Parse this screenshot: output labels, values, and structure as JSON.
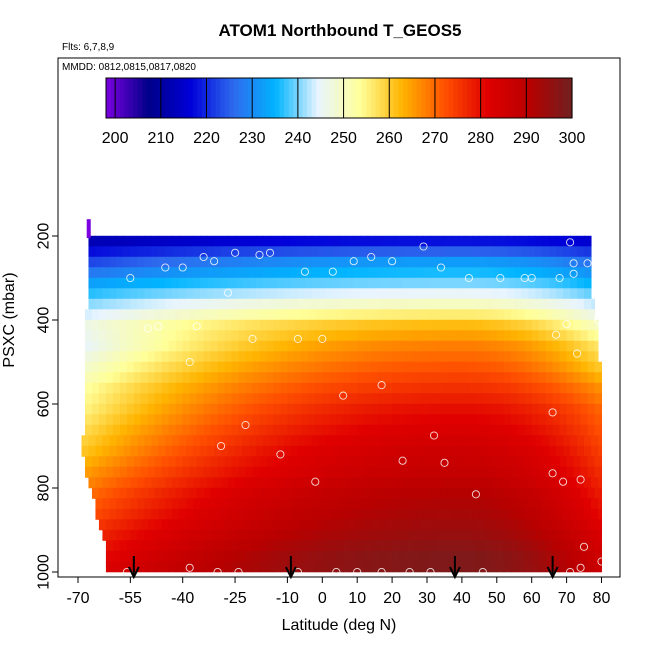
{
  "chart_data": {
    "type": "heatmap",
    "title": "ATOM1 Northbound T_GEOS5",
    "annotations": [
      "Flts: 6,7,8,9",
      "MMDD: 0812,0815,0817,0820"
    ],
    "xlabel": "Latitude (deg N)",
    "ylabel": "PSXC (mbar)",
    "xlim": [
      -70,
      80
    ],
    "ylim": [
      1000,
      0
    ],
    "x_ticks": [
      -70,
      -55,
      -40,
      -25,
      -10,
      0,
      10,
      20,
      30,
      40,
      50,
      60,
      70,
      80
    ],
    "y_ticks": [
      200,
      400,
      600,
      800,
      1000
    ],
    "colorbar": {
      "ticks": [
        200,
        210,
        220,
        230,
        240,
        250,
        260,
        270,
        280,
        290,
        300
      ],
      "range": [
        198,
        300
      ],
      "colors": [
        "#7b00e0",
        "#000088",
        "#0000d8",
        "#2e6aee",
        "#00b4ff",
        "#e8f4ff",
        "#ffff99",
        "#ffb400",
        "#ff5000",
        "#e00000",
        "#b80000",
        "#702020"
      ],
      "placement": "top"
    },
    "pressure_levels": [
      212,
      237,
      262,
      287,
      312,
      337,
      362,
      387,
      412,
      437,
      462,
      487,
      512,
      537,
      562,
      587,
      612,
      637,
      662,
      687,
      712,
      737,
      762,
      787,
      812,
      837,
      862,
      887,
      912,
      937,
      962,
      987
    ],
    "lat_start": [
      -67,
      -67,
      -67,
      -67,
      -67,
      -67,
      -67,
      -68,
      -68,
      -68,
      -68,
      -68,
      -68,
      -68,
      -68,
      -68,
      -68,
      -68,
      -68,
      -69,
      -69,
      -68,
      -68,
      -67,
      -66,
      -65,
      -65,
      -64,
      -63,
      -62,
      -62,
      -62
    ],
    "lat_end": [
      77,
      77,
      77,
      77,
      77,
      77,
      78,
      78,
      79,
      79,
      79,
      79,
      80,
      80,
      80,
      80,
      80,
      80,
      80,
      80,
      80,
      80,
      80,
      80,
      80,
      80,
      80,
      80,
      80,
      80,
      80,
      80
    ],
    "profile_lat": [
      -70,
      40,
      80
    ],
    "profile_T": [
      {
        "p": 212,
        "T": [
          212,
          218,
          215
        ]
      },
      {
        "p": 262,
        "T": [
          222,
          232,
          226
        ]
      },
      {
        "p": 312,
        "T": [
          232,
          240,
          234
        ]
      },
      {
        "p": 362,
        "T": [
          240,
          250,
          242
        ]
      },
      {
        "p": 412,
        "T": [
          246,
          262,
          249
        ]
      },
      {
        "p": 462,
        "T": [
          244,
          268,
          256
        ]
      },
      {
        "p": 512,
        "T": [
          248,
          272,
          260
        ]
      },
      {
        "p": 562,
        "T": [
          252,
          276,
          266
        ]
      },
      {
        "p": 612,
        "T": [
          254,
          280,
          270
        ]
      },
      {
        "p": 662,
        "T": [
          257,
          283,
          272
        ]
      },
      {
        "p": 712,
        "T": [
          260,
          286,
          274
        ]
      },
      {
        "p": 762,
        "T": [
          264,
          288,
          276
        ]
      },
      {
        "p": 812,
        "T": [
          268,
          291,
          278
        ]
      },
      {
        "p": 862,
        "T": [
          271,
          293,
          280
        ]
      },
      {
        "p": 912,
        "T": [
          275,
          295,
          283
        ]
      },
      {
        "p": 962,
        "T": [
          278,
          298,
          285
        ]
      },
      {
        "p": 987,
        "T": [
          280,
          298,
          286
        ]
      }
    ],
    "stray_cell": {
      "lat": -67,
      "p": [
        160,
        205
      ],
      "T": 198
    },
    "markers": [
      {
        "lat": -72,
        "p": 395
      },
      {
        "lat": -55,
        "p": 300
      },
      {
        "lat": -50,
        "p": 420
      },
      {
        "lat": -47,
        "p": 415
      },
      {
        "lat": -45,
        "p": 275
      },
      {
        "lat": -40,
        "p": 275
      },
      {
        "lat": -38,
        "p": 500
      },
      {
        "lat": -36,
        "p": 415
      },
      {
        "lat": -34,
        "p": 250
      },
      {
        "lat": -31,
        "p": 260
      },
      {
        "lat": -29,
        "p": 700
      },
      {
        "lat": -27,
        "p": 335
      },
      {
        "lat": -25,
        "p": 240
      },
      {
        "lat": -22,
        "p": 650
      },
      {
        "lat": -20,
        "p": 445
      },
      {
        "lat": -18,
        "p": 245
      },
      {
        "lat": -15,
        "p": 240
      },
      {
        "lat": -12,
        "p": 720
      },
      {
        "lat": -7,
        "p": 445
      },
      {
        "lat": -5,
        "p": 285
      },
      {
        "lat": -2,
        "p": 785
      },
      {
        "lat": 0,
        "p": 445
      },
      {
        "lat": 3,
        "p": 285
      },
      {
        "lat": 6,
        "p": 580
      },
      {
        "lat": 9,
        "p": 260
      },
      {
        "lat": 14,
        "p": 250
      },
      {
        "lat": 17,
        "p": 555
      },
      {
        "lat": 20,
        "p": 260
      },
      {
        "lat": 23,
        "p": 735
      },
      {
        "lat": 29,
        "p": 225
      },
      {
        "lat": 32,
        "p": 675
      },
      {
        "lat": 34,
        "p": 275
      },
      {
        "lat": 35,
        "p": 740
      },
      {
        "lat": 42,
        "p": 300
      },
      {
        "lat": 44,
        "p": 815
      },
      {
        "lat": 51,
        "p": 300
      },
      {
        "lat": 58,
        "p": 300
      },
      {
        "lat": 60,
        "p": 300
      },
      {
        "lat": 66,
        "p": 620
      },
      {
        "lat": 66,
        "p": 765
      },
      {
        "lat": 67,
        "p": 435
      },
      {
        "lat": 68,
        "p": 300
      },
      {
        "lat": 69,
        "p": 785
      },
      {
        "lat": 70,
        "p": 410
      },
      {
        "lat": 71,
        "p": 215
      },
      {
        "lat": 72,
        "p": 290
      },
      {
        "lat": 72,
        "p": 265
      },
      {
        "lat": 73,
        "p": 480
      },
      {
        "lat": 74,
        "p": 780
      },
      {
        "lat": 75,
        "p": 940
      },
      {
        "lat": 76,
        "p": 265
      },
      {
        "lat": 79,
        "p": 400
      },
      {
        "lat": 80,
        "p": 975
      },
      {
        "lat": -56,
        "p": 1000
      },
      {
        "lat": -38,
        "p": 990
      },
      {
        "lat": -30,
        "p": 1000
      },
      {
        "lat": -24,
        "p": 1000
      },
      {
        "lat": -7,
        "p": 1000
      },
      {
        "lat": 4,
        "p": 1000
      },
      {
        "lat": 10,
        "p": 1000
      },
      {
        "lat": 17,
        "p": 1000
      },
      {
        "lat": 25,
        "p": 1000
      },
      {
        "lat": 31,
        "p": 1000
      },
      {
        "lat": 46,
        "p": 1000
      },
      {
        "lat": 71,
        "p": 1000
      },
      {
        "lat": 74,
        "p": 990
      }
    ],
    "arrows_lat": [
      -54,
      -9,
      38,
      66
    ]
  }
}
